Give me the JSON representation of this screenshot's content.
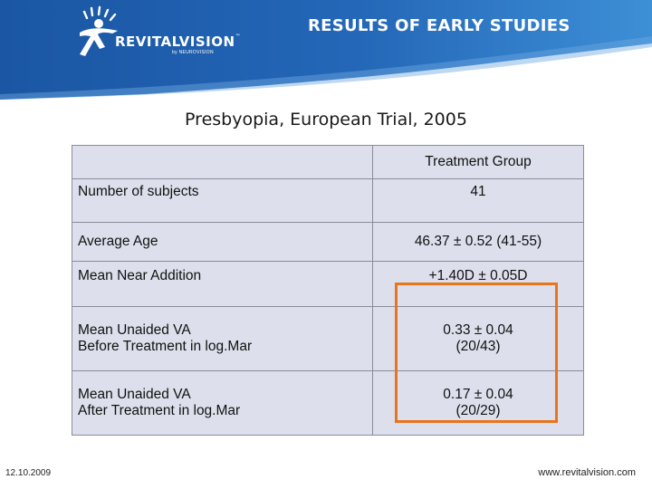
{
  "header": {
    "brand_name": "REVITALVISION",
    "brand_tm": "™",
    "brand_sub": "by NEUROVISION",
    "title": "RESULTS OF EARLY STUDIES"
  },
  "subtitle": "Presbyopia, European Trial, 2005",
  "table": {
    "column_header": "Treatment Group",
    "rows": [
      {
        "label": "Number of subjects",
        "value": "41"
      },
      {
        "label": "Average Age",
        "value": "46.37 ± 0.52 (41-55)"
      },
      {
        "label": "Mean Near Addition",
        "value": "+1.40D ± 0.05D"
      },
      {
        "label_line1": "Mean Unaided VA",
        "label_line2": "Before Treatment in log.Mar",
        "value_line1": "0.33 ± 0.04",
        "value_line2": "(20/43)"
      },
      {
        "label_line1": "Mean Unaided VA",
        "label_line2": "After Treatment in log.Mar",
        "value_line1": "0.17 ± 0.04",
        "value_line2": "(20/29)"
      }
    ]
  },
  "footer": {
    "date": "12.10.2009",
    "url": "www.revitalvision.com"
  },
  "colors": {
    "header_blue": "#1f5fae",
    "table_fill": "#dde0ec",
    "highlight_orange": "#e8751a"
  }
}
